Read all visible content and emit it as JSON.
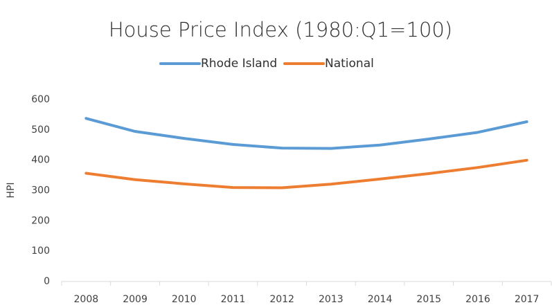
{
  "chart_data": {
    "type": "line",
    "title": "House Price Index (1980:Q1=100)",
    "y_label": "HPI",
    "categories": [
      "2008",
      "2009",
      "2010",
      "2011",
      "2012",
      "2013",
      "2014",
      "2015",
      "2016",
      "2017"
    ],
    "series": [
      {
        "name": "Rhode Island",
        "color": "#5b9bd5",
        "values": [
          538,
          495,
          472,
          452,
          440,
          439,
          450,
          470,
          492,
          527
        ]
      },
      {
        "name": "National",
        "color": "#ed7d31",
        "values": [
          357,
          336,
          322,
          310,
          309,
          321,
          338,
          356,
          376,
          400
        ]
      }
    ],
    "ylim": [
      0,
      600
    ],
    "yticks": [
      0,
      100,
      200,
      300,
      400,
      500,
      600
    ],
    "grid": false,
    "legend": "top"
  }
}
